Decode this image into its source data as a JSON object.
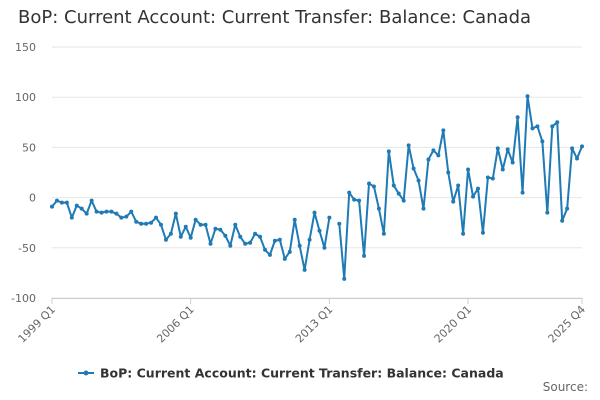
{
  "title": "BoP: Current Account: Current Transfer: Balance: Canada",
  "source_label": "Source:",
  "chart_data": {
    "type": "line",
    "title": "BoP: Current Account: Current Transfer: Balance: Canada",
    "xlabel": "",
    "ylabel": "",
    "ylim": [
      -100,
      150
    ],
    "yticks": [
      150,
      100,
      50,
      0,
      -50,
      -100
    ],
    "x_tick_labels": [
      "1999 Q1",
      "2006 Q1",
      "2013 Q1",
      "2020 Q1",
      "2025 Q4"
    ],
    "x_range": [
      "1999 Q1",
      "2025 Q4"
    ],
    "grid": true,
    "legend_position": "bottom",
    "color": "#1f7ab5",
    "series": [
      {
        "name": "BoP: Current Account: Current Transfer: Balance: Canada",
        "start": "1999 Q1",
        "frequency": "quarterly",
        "values": [
          -9,
          -3,
          -5,
          -5,
          -20,
          -8,
          -11,
          -16,
          -3,
          -14,
          -15,
          -14,
          -14,
          -16,
          -20,
          -19,
          -14,
          -24,
          -26,
          -26,
          -25,
          -20,
          -27,
          -42,
          -36,
          -16,
          -39,
          -29,
          -40,
          -22,
          -27,
          -27,
          -46,
          -31,
          -32,
          -38,
          -48,
          -27,
          -39,
          -46,
          -45,
          -36,
          -39,
          -52,
          -57,
          -43,
          -42,
          -61,
          -54,
          -22,
          -48,
          -72,
          -42,
          -15,
          -33,
          -50,
          -20,
          null,
          -26,
          -81,
          5,
          -2,
          -3,
          -58,
          14,
          11,
          -11,
          -36,
          46,
          12,
          4,
          -3,
          52,
          29,
          17,
          -11,
          38,
          47,
          42,
          67,
          25,
          -4,
          12,
          -36,
          28,
          1,
          9,
          -35,
          20,
          19,
          49,
          28,
          48,
          35,
          80,
          5,
          101,
          69,
          71,
          56,
          -15,
          71,
          75,
          -23,
          -11,
          49,
          39,
          51
        ]
      }
    ]
  }
}
